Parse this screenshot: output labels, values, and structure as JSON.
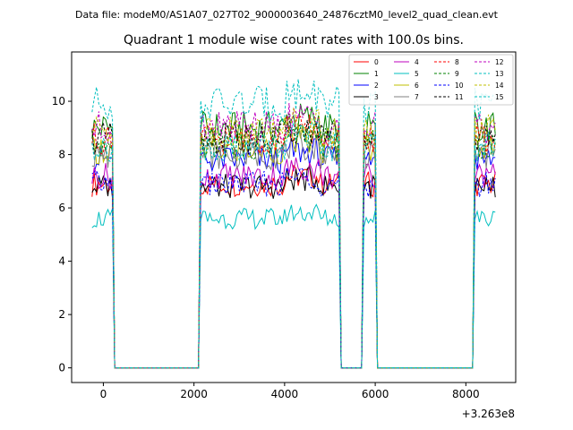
{
  "header": {
    "data_file": "Data file: modeM0/AS1A07_027T02_9000003640_24876cztM0_level2_quad_clean.evt"
  },
  "chart_data": {
    "type": "line",
    "title": "Quadrant 1 module wise count rates with 100.0s bins.",
    "xlabel": "",
    "ylabel": "",
    "x_offset_label": "+3.263e8",
    "xlim": [
      -700,
      9100
    ],
    "ylim": [
      -0.55,
      11.85
    ],
    "xticks": [
      0,
      2000,
      4000,
      6000,
      8000
    ],
    "yticks": [
      0,
      2,
      4,
      6,
      8,
      10
    ],
    "grid": false,
    "legend_position": "top-right",
    "legend_columns": 4,
    "x": [
      -250,
      -200,
      -150,
      -100,
      -50,
      0,
      50,
      100,
      150,
      200,
      250,
      300,
      350,
      400,
      450,
      500,
      550,
      600,
      650,
      700,
      750,
      800,
      850,
      900,
      950,
      1000,
      1050,
      1100,
      1150,
      1200,
      1250,
      1300,
      1350,
      1400,
      1450,
      1500,
      1550,
      1600,
      1650,
      1700,
      1750,
      1800,
      1850,
      1900,
      1950,
      2000,
      2050,
      2100,
      2150,
      2200,
      2250,
      2300,
      2350,
      2400,
      2450,
      2500,
      2550,
      2600,
      2650,
      2700,
      2750,
      2800,
      2850,
      2900,
      2950,
      3000,
      3050,
      3100,
      3150,
      3200,
      3250,
      3300,
      3350,
      3400,
      3450,
      3500,
      3550,
      3600,
      3650,
      3700,
      3750,
      3800,
      3850,
      3900,
      3950,
      4000,
      4050,
      4100,
      4150,
      4200,
      4250,
      4300,
      4350,
      4400,
      4450,
      4500,
      4550,
      4600,
      4650,
      4700,
      4750,
      4800,
      4850,
      4900,
      4950,
      5000,
      5050,
      5100,
      5150,
      5200,
      5250,
      5300,
      5350,
      5400,
      5450,
      5500,
      5550,
      5600,
      5650,
      5700,
      5750,
      5800,
      5850,
      5900,
      5950,
      6000,
      6050,
      6100,
      6150,
      6200,
      6250,
      6300,
      6350,
      6400,
      6450,
      6500,
      6550,
      6600,
      6650,
      6700,
      6750,
      6800,
      6850,
      6900,
      6950,
      7000,
      7050,
      7100,
      7150,
      7200,
      7250,
      7300,
      7350,
      7400,
      7450,
      7500,
      7550,
      7600,
      7650,
      7700,
      7750,
      7800,
      7850,
      7900,
      7950,
      8000,
      8050,
      8100,
      8150,
      8200,
      8250,
      8300,
      8350,
      8400,
      8450,
      8500,
      8550,
      8600,
      8650
    ],
    "active_segments": [
      [
        -250,
        200
      ],
      [
        2150,
        5200
      ],
      [
        5750,
        6000
      ],
      [
        8200,
        8650
      ]
    ],
    "series": [
      {
        "name": "0",
        "color": "#ff0000",
        "dashed": false,
        "level": 6.9
      },
      {
        "name": "1",
        "color": "#008000",
        "dashed": false,
        "level": 9.0
      },
      {
        "name": "2",
        "color": "#0000ff",
        "dashed": false,
        "level": 7.8
      },
      {
        "name": "3",
        "color": "#000000",
        "dashed": false,
        "level": 6.8
      },
      {
        "name": "4",
        "color": "#bf00bf",
        "dashed": false,
        "level": 7.2
      },
      {
        "name": "5",
        "color": "#00bfbf",
        "dashed": false,
        "level": 5.6
      },
      {
        "name": "6",
        "color": "#bfbf00",
        "dashed": false,
        "level": 8.2
      },
      {
        "name": "7",
        "color": "#808080",
        "dashed": false,
        "level": 8.0
      },
      {
        "name": "8",
        "color": "#ff0000",
        "dashed": true,
        "level": 8.6
      },
      {
        "name": "9",
        "color": "#008000",
        "dashed": true,
        "level": 8.4
      },
      {
        "name": "10",
        "color": "#0000ff",
        "dashed": true,
        "level": 6.9
      },
      {
        "name": "11",
        "color": "#000000",
        "dashed": true,
        "level": 8.6
      },
      {
        "name": "12",
        "color": "#bf00bf",
        "dashed": true,
        "level": 9.0
      },
      {
        "name": "13",
        "color": "#00bfbf",
        "dashed": true,
        "level": 9.9
      },
      {
        "name": "14",
        "color": "#bfbf00",
        "dashed": true,
        "level": 8.9
      },
      {
        "name": "15",
        "color": "#00bfbf",
        "dashed": true,
        "level": 8.3
      }
    ]
  }
}
